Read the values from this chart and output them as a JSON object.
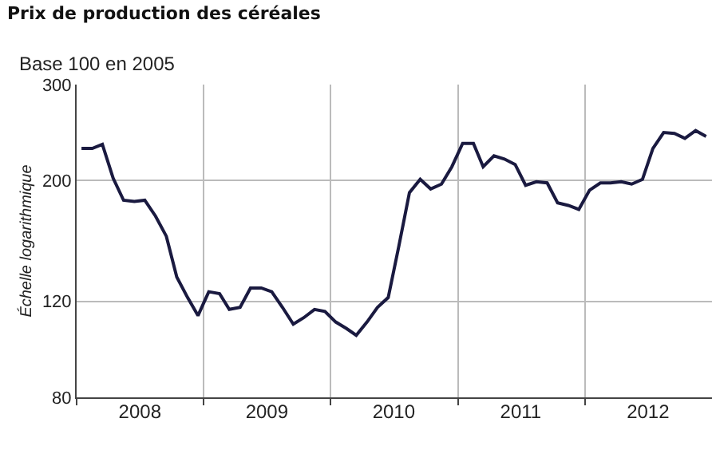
{
  "chart_data": {
    "type": "line",
    "title": "Prix de production des céréales",
    "subtitle": "Base 100 en 2005",
    "ylabel": "Échelle logarithmique",
    "x": [
      "2008-01-15",
      "2008-02-15",
      "2008-03-15",
      "2008-04-15",
      "2008-05-15",
      "2008-06-15",
      "2008-07-15",
      "2008-08-15",
      "2008-09-15",
      "2008-10-15",
      "2008-11-15",
      "2008-12-15",
      "2009-01-15",
      "2009-02-15",
      "2009-03-15",
      "2009-04-15",
      "2009-05-15",
      "2009-06-15",
      "2009-07-15",
      "2009-08-15",
      "2009-09-15",
      "2009-10-15",
      "2009-11-15",
      "2009-12-15",
      "2010-01-15",
      "2010-02-15",
      "2010-03-15",
      "2010-04-15",
      "2010-05-15",
      "2010-06-15",
      "2010-07-15",
      "2010-08-15",
      "2010-09-15",
      "2010-10-15",
      "2010-11-15",
      "2010-12-15",
      "2011-01-15",
      "2011-02-15",
      "2011-03-15",
      "2011-04-15",
      "2011-05-15",
      "2011-06-15",
      "2011-07-15",
      "2011-08-15",
      "2011-09-15",
      "2011-10-15",
      "2011-11-15",
      "2011-12-15",
      "2012-01-15",
      "2012-02-15",
      "2012-03-15",
      "2012-04-15",
      "2012-05-15",
      "2012-06-15",
      "2012-07-15",
      "2012-08-15",
      "2012-09-15",
      "2012-10-15",
      "2012-11-15",
      "2012-12-15"
    ],
    "series": [
      {
        "color": "#1a1a40",
        "values": [
          229,
          229,
          233,
          202,
          184,
          183,
          184,
          172,
          158,
          133,
          122,
          113,
          125,
          124,
          116,
          117,
          127,
          127,
          125,
          117,
          109,
          112,
          116,
          115,
          110,
          107,
          104,
          110,
          117,
          122,
          151,
          190,
          201,
          193,
          197,
          212,
          234,
          234,
          212,
          222,
          219,
          214,
          196,
          199,
          198,
          182,
          180,
          177,
          192,
          198,
          198,
          199,
          197,
          201,
          229,
          245,
          244,
          239,
          247,
          241
        ]
      }
    ],
    "xlim": [
      "2008-01-01",
      "2013-01-01"
    ],
    "xticks": [
      {
        "value": "2008-01-01",
        "label": null
      },
      {
        "value": "2008-07-01",
        "label": "2008"
      },
      {
        "value": "2009-01-01",
        "label": null
      },
      {
        "value": "2009-07-01",
        "label": "2009"
      },
      {
        "value": "2010-01-01",
        "label": null
      },
      {
        "value": "2010-07-01",
        "label": "2010"
      },
      {
        "value": "2011-01-01",
        "label": null
      },
      {
        "value": "2011-07-01",
        "label": "2011"
      },
      {
        "value": "2012-01-01",
        "label": null
      },
      {
        "value": "2012-07-01",
        "label": "2012"
      }
    ],
    "ylim": [
      80,
      300
    ],
    "yticks": [
      80,
      120,
      200,
      300
    ],
    "log": true,
    "grid": true,
    "marker": "none",
    "line_style": "solid"
  }
}
